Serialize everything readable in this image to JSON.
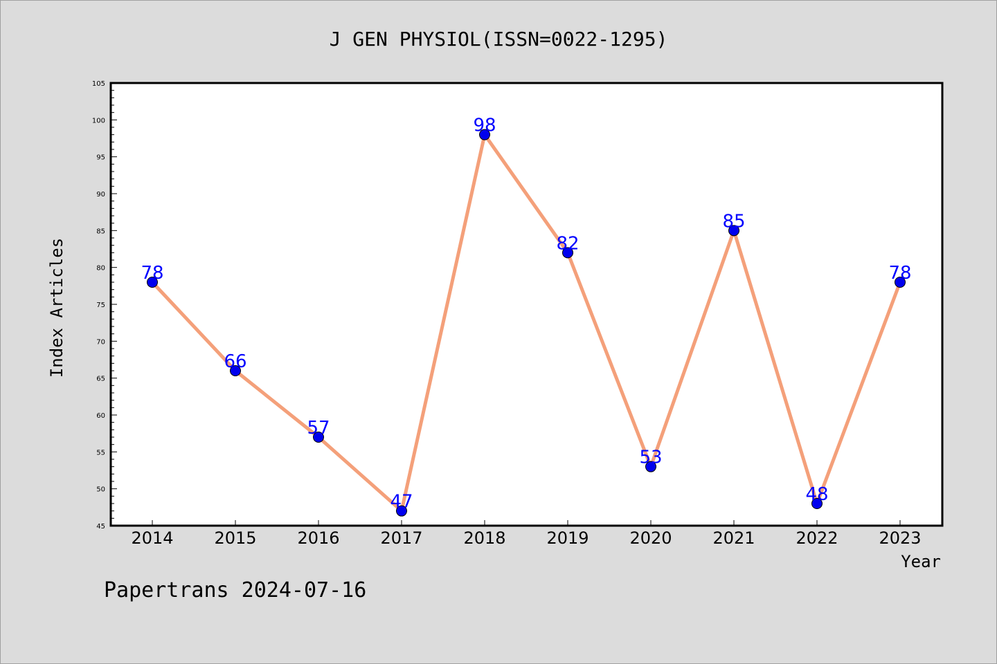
{
  "chart_data": {
    "type": "line",
    "title": "J GEN PHYSIOL(ISSN=0022-1295)",
    "xlabel": "Year",
    "ylabel": "Index Articles",
    "categories": [
      "2014",
      "2015",
      "2016",
      "2017",
      "2018",
      "2019",
      "2020",
      "2021",
      "2022",
      "2023"
    ],
    "series": [
      {
        "values": [
          78,
          66,
          57,
          47,
          98,
          82,
          53,
          85,
          48,
          78
        ]
      }
    ],
    "ylim": [
      45,
      105
    ],
    "yticks": [
      45,
      50,
      55,
      60,
      65,
      70,
      75,
      80,
      85,
      90,
      95,
      100,
      105
    ],
    "grid": false,
    "line_color": "#f4a07a",
    "marker_color": "#0000ee",
    "label_color": "#0000ff",
    "background": "#dcdcdc",
    "plot_background": "#ffffff"
  },
  "footer": "Papertrans 2024-07-16"
}
